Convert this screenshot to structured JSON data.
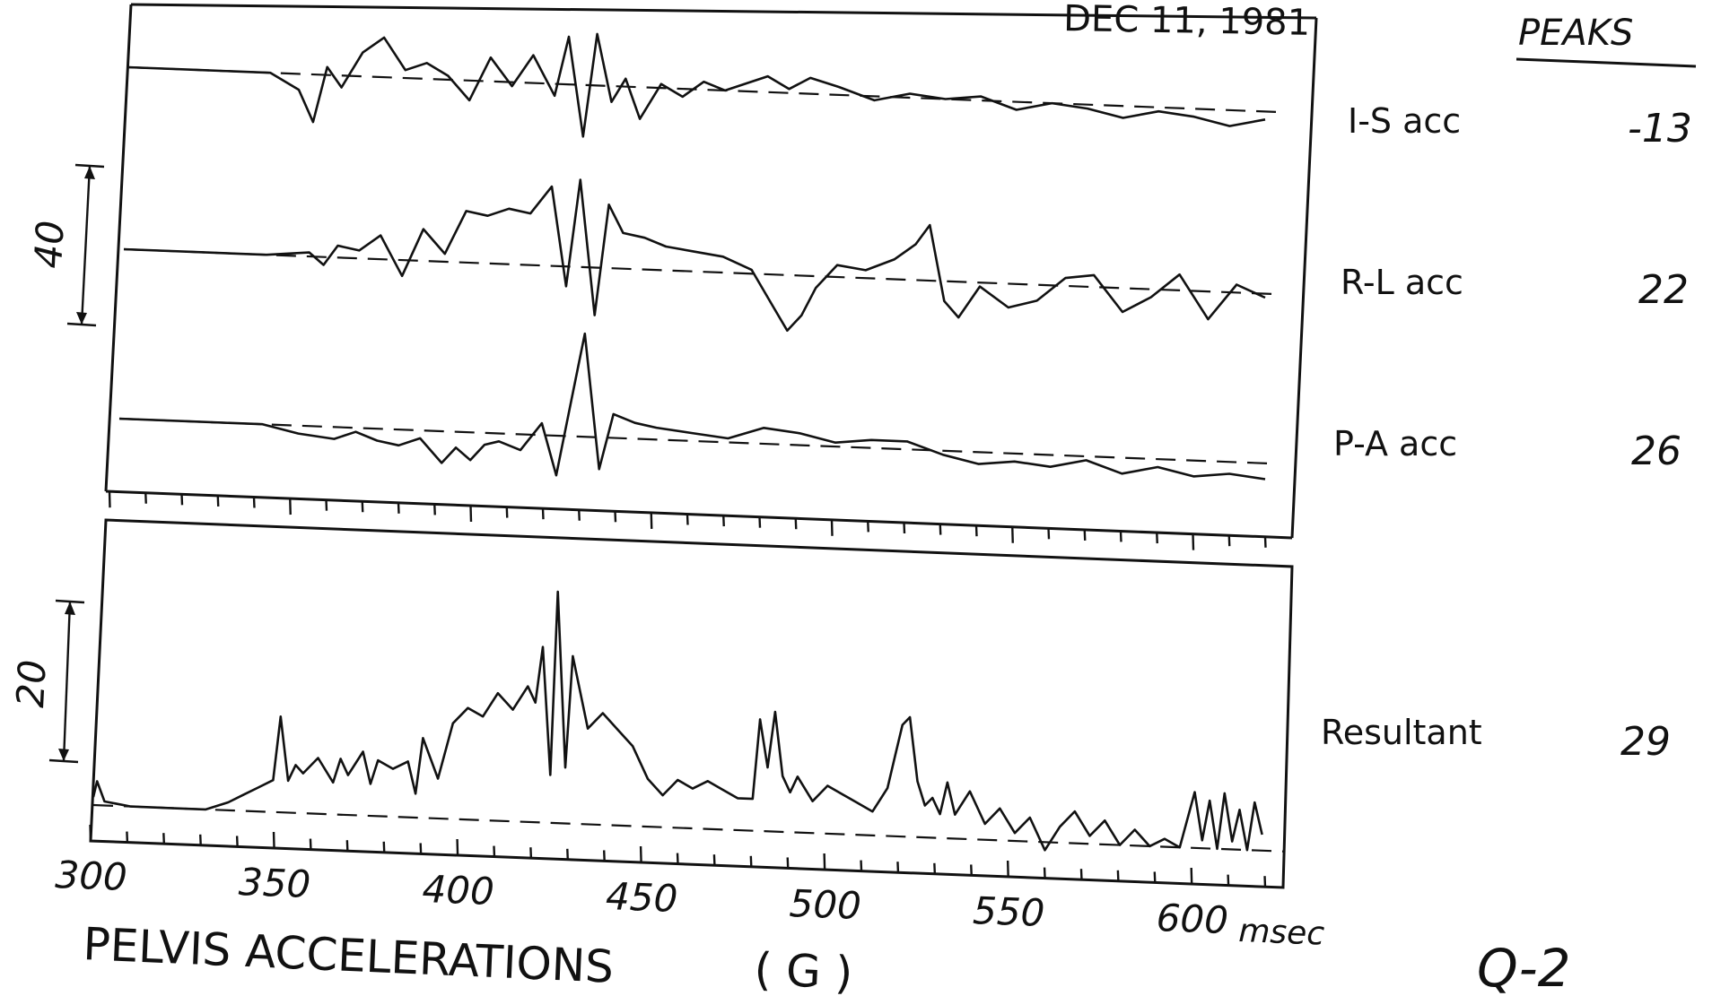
{
  "header": {
    "date": "DEC 11, 1981",
    "peaks_heading": "PEAKS",
    "corner_code": "Q-2"
  },
  "footer": {
    "title": "PELVIS ACCELERATIONS",
    "unit": "( G )"
  },
  "chart_data": [
    {
      "type": "line",
      "panel": "top",
      "title": "",
      "xlabel": "msec",
      "x_unit": "msec",
      "xlim": [
        300,
        620
      ],
      "scale_bar": {
        "label": "40",
        "value": 40
      },
      "series": [
        {
          "name": "I-S acc",
          "peak": "-13",
          "x": [
            300,
            320,
            340,
            348,
            352,
            356,
            360,
            366,
            372,
            378,
            384,
            390,
            396,
            402,
            408,
            414,
            420,
            424,
            428,
            432,
            436,
            440,
            444,
            450,
            456,
            462,
            468,
            474,
            480,
            486,
            492,
            500,
            510,
            520,
            530,
            540,
            550,
            560,
            570,
            580,
            590,
            600,
            610,
            620
          ],
          "y": [
            0,
            0,
            0,
            -4,
            -12,
            2,
            -3,
            6,
            10,
            2,
            4,
            1,
            -5,
            6,
            -1,
            7,
            -3,
            12,
            -13,
            13,
            -4,
            2,
            -8,
            1,
            -2,
            2,
            0,
            2,
            4,
            1,
            4,
            2,
            -1,
            1,
            0,
            1,
            -2,
            0,
            -1,
            -3,
            -1,
            -2,
            -4,
            -2
          ]
        },
        {
          "name": "R-L acc",
          "peak": "22",
          "x": [
            300,
            320,
            340,
            352,
            356,
            360,
            366,
            372,
            378,
            384,
            390,
            396,
            402,
            408,
            414,
            420,
            424,
            428,
            432,
            436,
            440,
            446,
            452,
            460,
            468,
            476,
            482,
            486,
            490,
            494,
            500,
            508,
            516,
            522,
            526,
            530,
            534,
            540,
            548,
            556,
            564,
            572,
            580,
            588,
            596,
            604,
            612,
            620
          ],
          "y": [
            0,
            0,
            0,
            1,
            -2,
            3,
            2,
            6,
            -4,
            8,
            2,
            13,
            12,
            14,
            13,
            20,
            -5,
            22,
            -12,
            16,
            9,
            8,
            6,
            5,
            4,
            1,
            -8,
            -14,
            -10,
            -3,
            3,
            2,
            5,
            9,
            14,
            -5,
            -9,
            -1,
            -6,
            -4,
            2,
            3,
            -6,
            -2,
            4,
            -7,
            2,
            -1
          ]
        },
        {
          "name": "P-A acc",
          "peak": "26",
          "x": [
            300,
            320,
            340,
            350,
            360,
            366,
            372,
            378,
            384,
            390,
            394,
            398,
            402,
            406,
            412,
            418,
            422,
            426,
            430,
            434,
            438,
            444,
            450,
            460,
            470,
            480,
            490,
            500,
            510,
            520,
            530,
            540,
            550,
            560,
            570,
            580,
            590,
            600,
            610,
            620
          ],
          "y": [
            0,
            0,
            0,
            -2,
            -3,
            -1,
            -3,
            -4,
            -2,
            -8,
            -4,
            -7,
            -3,
            -2,
            -4,
            3,
            -10,
            8,
            26,
            -8,
            6,
            4,
            3,
            2,
            1,
            4,
            3,
            1,
            2,
            2,
            -1,
            -3,
            -2,
            -3,
            -1,
            -4,
            -2,
            -4,
            -3,
            -4
          ]
        }
      ]
    },
    {
      "type": "line",
      "panel": "bottom",
      "title": "",
      "xlabel": "msec",
      "x_unit": "msec",
      "xlim": [
        300,
        620
      ],
      "x_ticks": [
        300,
        350,
        400,
        450,
        500,
        550,
        600
      ],
      "scale_bar": {
        "label": "20",
        "value": 20
      },
      "series": [
        {
          "name": "Resultant",
          "peak": "29",
          "x": [
            300,
            301,
            303,
            310,
            320,
            330,
            336,
            340,
            344,
            348,
            350,
            352,
            354,
            356,
            360,
            364,
            366,
            368,
            372,
            374,
            376,
            380,
            384,
            386,
            388,
            392,
            396,
            400,
            404,
            408,
            412,
            416,
            418,
            420,
            422,
            424,
            426,
            428,
            432,
            436,
            440,
            444,
            448,
            452,
            456,
            460,
            464,
            468,
            472,
            476,
            478,
            480,
            482,
            484,
            486,
            488,
            492,
            496,
            500,
            504,
            508,
            512,
            514,
            516,
            518,
            520,
            522,
            524,
            526,
            528,
            530,
            534,
            538,
            542,
            546,
            550,
            554,
            558,
            562,
            566,
            570,
            574,
            578,
            582,
            586,
            590,
            594,
            596,
            598,
            600,
            602,
            604,
            606,
            608,
            610,
            612
          ],
          "y": [
            1,
            3,
            0.5,
            0,
            0,
            0,
            1,
            2,
            3,
            4,
            12,
            4,
            6,
            5,
            7,
            4,
            7,
            5,
            8,
            4,
            7,
            6,
            7,
            3,
            10,
            5,
            12,
            14,
            13,
            16,
            14,
            17,
            15,
            22,
            6,
            29,
            7,
            21,
            12,
            14,
            12,
            10,
            6,
            4,
            6,
            5,
            6,
            5,
            4,
            4,
            14,
            8,
            15,
            7,
            5,
            7,
            4,
            6,
            5,
            4,
            3,
            6,
            10,
            14,
            15,
            7,
            4,
            5,
            3,
            7,
            3,
            6,
            2,
            4,
            1,
            3,
            -1,
            2,
            4,
            1,
            3,
            0,
            2,
            0,
            1,
            0,
            7,
            1,
            6,
            0,
            7,
            1,
            5,
            0,
            6,
            2
          ]
        }
      ]
    }
  ]
}
